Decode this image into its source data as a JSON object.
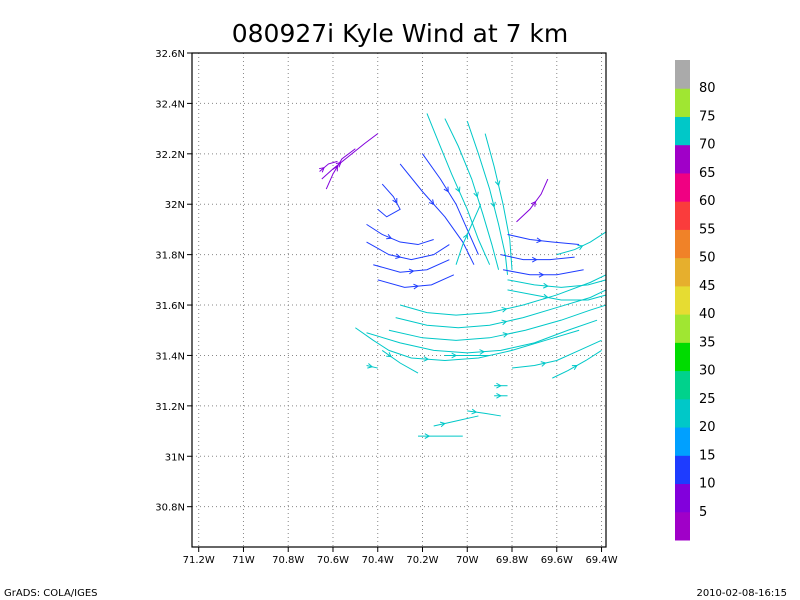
{
  "chart_data": {
    "type": "streamline",
    "title": "080927i Kyle Wind at 7 km",
    "x_ticks": [
      "71.2W",
      "71W",
      "70.8W",
      "70.6W",
      "70.4W",
      "70.2W",
      "70W",
      "69.8W",
      "69.6W",
      "69.4W"
    ],
    "x_values": [
      -71.2,
      -71.0,
      -70.8,
      -70.6,
      -70.4,
      -70.2,
      -70.0,
      -69.8,
      -69.6,
      -69.4
    ],
    "y_ticks": [
      "30.8N",
      "31N",
      "31.2N",
      "31.4N",
      "31.6N",
      "31.8N",
      "32N",
      "32.2N",
      "32.4N",
      "32.6N"
    ],
    "y_values": [
      30.8,
      31.0,
      31.2,
      31.4,
      31.6,
      31.8,
      32.0,
      32.2,
      32.4,
      32.6
    ],
    "xlim": [
      -71.23,
      -69.38
    ],
    "ylim": [
      30.64,
      32.6
    ],
    "grid": "dotted",
    "colorbar": {
      "labels": [
        "5",
        "10",
        "15",
        "20",
        "25",
        "30",
        "35",
        "40",
        "45",
        "50",
        "55",
        "60",
        "65",
        "70",
        "75",
        "80"
      ],
      "colors": [
        "#a000c8",
        "#8200dc",
        "#1e3cff",
        "#00a0ff",
        "#00c8c8",
        "#00d28c",
        "#00dc00",
        "#a0e632",
        "#e6dc32",
        "#e6af2d",
        "#f08228",
        "#fa3c3c",
        "#f00082",
        "#a000c8",
        "#00c8c8",
        "#a0e632",
        "#aaaaaa"
      ]
    },
    "streamlines": [
      {
        "speed": 7,
        "points": [
          [
            -70.65,
            32.1
          ],
          [
            -70.6,
            32.14
          ],
          [
            -70.53,
            32.19
          ],
          [
            -70.46,
            32.24
          ],
          [
            -70.4,
            32.28
          ]
        ]
      },
      {
        "speed": 7,
        "points": [
          [
            -70.63,
            32.06
          ],
          [
            -70.6,
            32.12
          ],
          [
            -70.56,
            32.18
          ],
          [
            -70.5,
            32.22
          ]
        ]
      },
      {
        "speed": 7,
        "points": [
          [
            -70.66,
            32.13
          ],
          [
            -70.62,
            32.16
          ],
          [
            -70.58,
            32.17
          ]
        ]
      },
      {
        "speed": 12,
        "points": [
          [
            -70.2,
            32.2
          ],
          [
            -70.12,
            32.1
          ],
          [
            -70.05,
            32.0
          ],
          [
            -70.0,
            31.9
          ],
          [
            -69.95,
            31.8
          ]
        ]
      },
      {
        "speed": 12,
        "points": [
          [
            -70.3,
            32.16
          ],
          [
            -70.2,
            32.05
          ],
          [
            -70.1,
            31.95
          ],
          [
            -70.02,
            31.85
          ],
          [
            -69.97,
            31.76
          ]
        ]
      },
      {
        "speed": 10,
        "points": [
          [
            -70.38,
            32.08
          ],
          [
            -70.33,
            32.03
          ],
          [
            -70.3,
            31.98
          ],
          [
            -70.36,
            31.95
          ],
          [
            -70.4,
            31.98
          ]
        ]
      },
      {
        "speed": 10,
        "points": [
          [
            -70.45,
            31.92
          ],
          [
            -70.38,
            31.88
          ],
          [
            -70.3,
            31.85
          ],
          [
            -70.22,
            31.84
          ],
          [
            -70.15,
            31.86
          ]
        ]
      },
      {
        "speed": 12,
        "points": [
          [
            -70.45,
            31.85
          ],
          [
            -70.35,
            31.8
          ],
          [
            -70.25,
            31.78
          ],
          [
            -70.15,
            31.8
          ],
          [
            -70.08,
            31.84
          ]
        ]
      },
      {
        "speed": 12,
        "points": [
          [
            -70.42,
            31.76
          ],
          [
            -70.3,
            31.73
          ],
          [
            -70.18,
            31.74
          ],
          [
            -70.08,
            31.78
          ]
        ]
      },
      {
        "speed": 12,
        "points": [
          [
            -70.4,
            31.7
          ],
          [
            -70.28,
            31.67
          ],
          [
            -70.16,
            31.68
          ],
          [
            -70.06,
            31.72
          ]
        ]
      },
      {
        "speed": 22,
        "points": [
          [
            -70.18,
            32.36
          ],
          [
            -70.13,
            32.25
          ],
          [
            -70.07,
            32.12
          ],
          [
            -70.0,
            31.98
          ],
          [
            -69.95,
            31.86
          ],
          [
            -69.9,
            31.76
          ]
        ]
      },
      {
        "speed": 22,
        "points": [
          [
            -70.1,
            32.34
          ],
          [
            -70.04,
            32.23
          ],
          [
            -69.98,
            32.1
          ],
          [
            -69.93,
            31.96
          ],
          [
            -69.89,
            31.84
          ],
          [
            -69.86,
            31.74
          ]
        ]
      },
      {
        "speed": 22,
        "points": [
          [
            -70.0,
            32.33
          ],
          [
            -69.95,
            32.2
          ],
          [
            -69.9,
            32.06
          ],
          [
            -69.86,
            31.92
          ],
          [
            -69.83,
            31.8
          ],
          [
            -69.82,
            31.72
          ]
        ]
      },
      {
        "speed": 22,
        "points": [
          [
            -69.92,
            32.28
          ],
          [
            -69.88,
            32.15
          ],
          [
            -69.84,
            32.0
          ],
          [
            -69.81,
            31.86
          ],
          [
            -69.8,
            31.74
          ]
        ]
      },
      {
        "speed": 22,
        "points": [
          [
            -70.05,
            31.76
          ],
          [
            -70.02,
            31.84
          ],
          [
            -69.98,
            31.92
          ],
          [
            -69.94,
            32.0
          ]
        ]
      },
      {
        "speed": 8,
        "points": [
          [
            -69.78,
            31.93
          ],
          [
            -69.72,
            31.98
          ],
          [
            -69.67,
            32.04
          ],
          [
            -69.64,
            32.1
          ]
        ]
      },
      {
        "speed": 12,
        "points": [
          [
            -69.82,
            31.88
          ],
          [
            -69.72,
            31.86
          ],
          [
            -69.62,
            31.85
          ],
          [
            -69.5,
            31.84
          ]
        ]
      },
      {
        "speed": 12,
        "points": [
          [
            -69.85,
            31.8
          ],
          [
            -69.75,
            31.78
          ],
          [
            -69.63,
            31.78
          ],
          [
            -69.52,
            31.79
          ]
        ]
      },
      {
        "speed": 12,
        "points": [
          [
            -69.84,
            31.74
          ],
          [
            -69.72,
            31.72
          ],
          [
            -69.6,
            31.72
          ],
          [
            -69.48,
            31.74
          ]
        ]
      },
      {
        "speed": 20,
        "points": [
          [
            -69.82,
            31.7
          ],
          [
            -69.7,
            31.68
          ],
          [
            -69.58,
            31.67
          ],
          [
            -69.46,
            31.68
          ],
          [
            -69.38,
            31.7
          ]
        ]
      },
      {
        "speed": 22,
        "points": [
          [
            -69.82,
            31.66
          ],
          [
            -69.7,
            31.64
          ],
          [
            -69.58,
            31.62
          ],
          [
            -69.46,
            31.62
          ],
          [
            -69.38,
            31.64
          ]
        ]
      },
      {
        "speed": 22,
        "points": [
          [
            -69.6,
            31.8
          ],
          [
            -69.52,
            31.82
          ],
          [
            -69.45,
            31.85
          ],
          [
            -69.38,
            31.89
          ]
        ]
      },
      {
        "speed": 22,
        "points": [
          [
            -70.3,
            31.6
          ],
          [
            -70.18,
            31.57
          ],
          [
            -70.05,
            31.56
          ],
          [
            -69.9,
            31.57
          ],
          [
            -69.75,
            31.6
          ],
          [
            -69.6,
            31.64
          ],
          [
            -69.45,
            31.69
          ],
          [
            -69.38,
            31.72
          ]
        ]
      },
      {
        "speed": 22,
        "points": [
          [
            -70.32,
            31.55
          ],
          [
            -70.18,
            31.52
          ],
          [
            -70.04,
            31.51
          ],
          [
            -69.9,
            31.52
          ],
          [
            -69.75,
            31.55
          ],
          [
            -69.6,
            31.59
          ],
          [
            -69.45,
            31.63
          ],
          [
            -69.38,
            31.66
          ]
        ]
      },
      {
        "speed": 22,
        "points": [
          [
            -70.35,
            31.5
          ],
          [
            -70.2,
            31.47
          ],
          [
            -70.05,
            31.46
          ],
          [
            -69.9,
            31.47
          ],
          [
            -69.74,
            31.5
          ],
          [
            -69.58,
            31.54
          ],
          [
            -69.45,
            31.58
          ],
          [
            -69.38,
            31.6
          ]
        ]
      },
      {
        "speed": 22,
        "points": [
          [
            -70.45,
            31.49
          ],
          [
            -70.3,
            31.45
          ],
          [
            -70.15,
            31.42
          ],
          [
            -70.0,
            31.41
          ],
          [
            -69.85,
            31.42
          ],
          [
            -69.7,
            31.45
          ],
          [
            -69.55,
            31.5
          ],
          [
            -69.42,
            31.54
          ]
        ]
      },
      {
        "speed": 22,
        "points": [
          [
            -70.5,
            31.51
          ],
          [
            -70.42,
            31.46
          ],
          [
            -70.35,
            31.42
          ],
          [
            -70.25,
            31.39
          ],
          [
            -70.1,
            31.38
          ],
          [
            -69.95,
            31.39
          ],
          [
            -69.8,
            31.42
          ],
          [
            -69.65,
            31.46
          ],
          [
            -69.5,
            31.5
          ]
        ]
      },
      {
        "speed": 22,
        "points": [
          [
            -70.38,
            31.42
          ],
          [
            -70.3,
            31.37
          ],
          [
            -70.22,
            31.33
          ]
        ]
      },
      {
        "speed": 22,
        "points": [
          [
            -70.1,
            31.4
          ],
          [
            -70.0,
            31.4
          ],
          [
            -69.9,
            31.4
          ]
        ]
      },
      {
        "speed": 22,
        "points": [
          [
            -69.8,
            31.35
          ],
          [
            -69.7,
            31.36
          ],
          [
            -69.6,
            31.38
          ],
          [
            -69.5,
            31.42
          ],
          [
            -69.4,
            31.46
          ]
        ]
      },
      {
        "speed": 22,
        "points": [
          [
            -69.62,
            31.31
          ],
          [
            -69.55,
            31.34
          ],
          [
            -69.47,
            31.38
          ],
          [
            -69.4,
            31.42
          ]
        ]
      },
      {
        "speed": 22,
        "points": [
          [
            -70.22,
            31.08
          ],
          [
            -70.12,
            31.08
          ],
          [
            -70.02,
            31.08
          ]
        ]
      },
      {
        "speed": 22,
        "points": [
          [
            -70.15,
            31.12
          ],
          [
            -70.05,
            31.14
          ],
          [
            -69.95,
            31.16
          ]
        ]
      },
      {
        "speed": 22,
        "points": [
          [
            -70.0,
            31.18
          ],
          [
            -69.92,
            31.17
          ],
          [
            -69.85,
            31.16
          ]
        ]
      },
      {
        "speed": 22,
        "points": [
          [
            -69.88,
            31.28
          ],
          [
            -69.82,
            31.28
          ]
        ]
      },
      {
        "speed": 22,
        "points": [
          [
            -69.88,
            31.24
          ],
          [
            -69.82,
            31.24
          ]
        ]
      },
      {
        "speed": 22,
        "points": [
          [
            -70.45,
            31.36
          ],
          [
            -70.4,
            31.35
          ]
        ]
      }
    ]
  },
  "footer": {
    "left": "GrADS: COLA/IGES",
    "right": "2010-02-08-16:15"
  }
}
